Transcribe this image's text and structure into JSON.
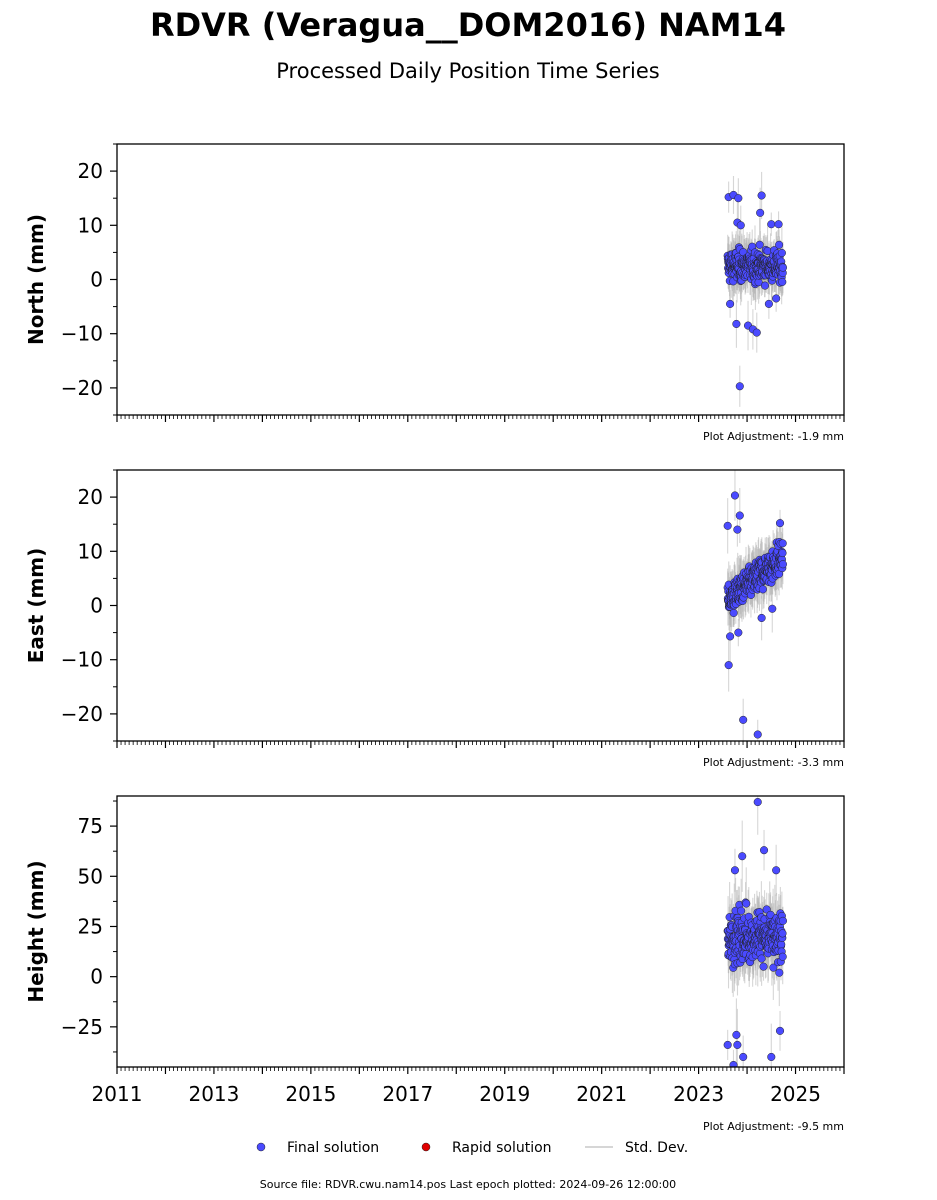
{
  "title": "RDVR (Veragua__DOM2016) NAM14",
  "subtitle": "Processed Daily Position Time Series",
  "footer": "Source file: RDVR.cwu.nam14.pos  Last epoch plotted: 2024-09-26 12:00:00",
  "legend": [
    {
      "label": "Final solution",
      "color": "#4a4aff",
      "kind": "point"
    },
    {
      "label": "Rapid solution",
      "color": "#e00000",
      "kind": "point"
    },
    {
      "label": "Std. Dev.",
      "color": "#c8c8c8",
      "kind": "line"
    }
  ],
  "chart_data": [
    {
      "type": "scatter",
      "ylabel": "North (mm)",
      "ylim": [
        -25,
        25
      ],
      "yticks": [
        -20,
        -10,
        0,
        10,
        20
      ],
      "yticklabels": [
        "−20",
        "−10",
        "0",
        "10",
        "20"
      ],
      "xlim": [
        2011,
        2026
      ],
      "adjustment": "Plot Adjustment: -1.9 mm",
      "series_color": "#4a4aff",
      "x_range": [
        2023.6,
        2024.74
      ],
      "center": 2.5,
      "spread": 4,
      "outliers": [
        [
          2023.62,
          15.2
        ],
        [
          2023.72,
          15.6
        ],
        [
          2023.82,
          15
        ],
        [
          2023.8,
          10.5
        ],
        [
          2023.87,
          10
        ],
        [
          2024.3,
          15.5
        ],
        [
          2024.27,
          12.3
        ],
        [
          2024.5,
          10.2
        ],
        [
          2024.65,
          10.2
        ],
        [
          2023.78,
          -8.2
        ],
        [
          2024.02,
          -8.5
        ],
        [
          2024.12,
          -9.2
        ],
        [
          2024.2,
          -9.8
        ],
        [
          2023.85,
          -19.7
        ],
        [
          2023.65,
          -4.5
        ],
        [
          2024.45,
          -4.5
        ],
        [
          2024.6,
          -3.5
        ]
      ]
    },
    {
      "type": "scatter",
      "ylabel": "East (mm)",
      "ylim": [
        -25,
        25
      ],
      "yticks": [
        -20,
        -10,
        0,
        10,
        20
      ],
      "yticklabels": [
        "−20",
        "−10",
        "0",
        "10",
        "20"
      ],
      "xlim": [
        2011,
        2026
      ],
      "adjustment": "Plot Adjustment: -3.3 mm",
      "series_color": "#4a4aff",
      "x_range": [
        2023.6,
        2024.74
      ],
      "center": 5,
      "spread": 4,
      "outliers": [
        [
          2023.6,
          14.7
        ],
        [
          2023.75,
          20.3
        ],
        [
          2023.85,
          16.6
        ],
        [
          2023.8,
          14
        ],
        [
          2024.68,
          15.2
        ],
        [
          2023.62,
          -11
        ],
        [
          2023.65,
          -5.7
        ],
        [
          2023.82,
          -5
        ],
        [
          2023.92,
          -21.1
        ],
        [
          2024.22,
          -23.8
        ],
        [
          2024.3,
          -2.3
        ],
        [
          2024.52,
          -0.6
        ]
      ]
    },
    {
      "type": "scatter",
      "ylabel": "Height (mm)",
      "ylim": [
        -45,
        90
      ],
      "yticks": [
        -25,
        0,
        25,
        50,
        75
      ],
      "yticklabels": [
        "−25",
        "0",
        "25",
        "50",
        "75"
      ],
      "xlim": [
        2011,
        2026
      ],
      "xticks": [
        2011,
        2013,
        2015,
        2017,
        2019,
        2021,
        2023,
        2025
      ],
      "adjustment": "Plot Adjustment: -9.5 mm",
      "series_color": "#4a4aff",
      "x_range": [
        2023.6,
        2024.74
      ],
      "center": 20,
      "spread": 18,
      "outliers": [
        [
          2024.22,
          87
        ],
        [
          2024.35,
          63
        ],
        [
          2023.9,
          60
        ],
        [
          2023.75,
          53
        ],
        [
          2024.6,
          53
        ],
        [
          2023.6,
          -34
        ],
        [
          2023.78,
          -29
        ],
        [
          2023.8,
          -34
        ],
        [
          2023.72,
          -44
        ],
        [
          2023.92,
          -40
        ],
        [
          2024.5,
          -40
        ],
        [
          2024.68,
          -27
        ]
      ]
    }
  ]
}
